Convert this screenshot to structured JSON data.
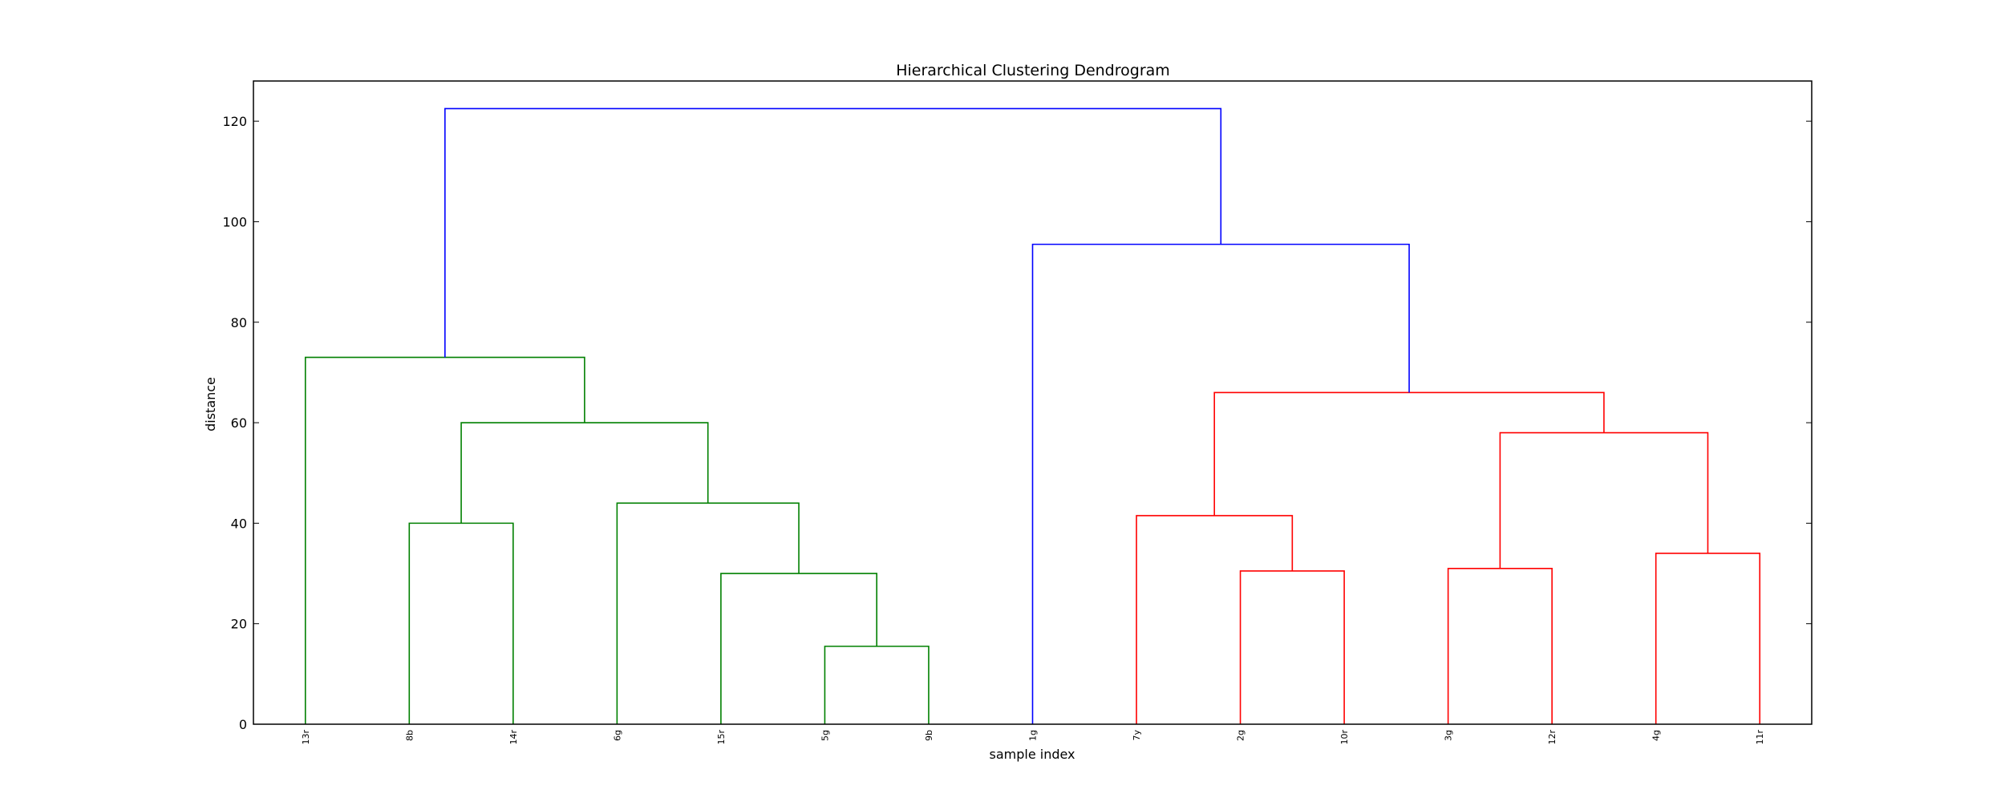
{
  "chart_data": {
    "type": "dendrogram",
    "title": "Hierarchical Clustering Dendrogram",
    "xlabel": "sample index",
    "ylabel": "distance",
    "ylim": [
      0,
      128
    ],
    "yticks": [
      0,
      20,
      40,
      60,
      80,
      100,
      120
    ],
    "grid": false,
    "leaves": [
      "13r",
      "8b",
      "14r",
      "6g",
      "15r",
      "5g",
      "9b",
      "1g",
      "7y",
      "2g",
      "10r",
      "3g",
      "12r",
      "4g",
      "11r"
    ],
    "colors": {
      "cluster_1": "#008000",
      "cluster_2": "#ff0000",
      "above_threshold": "#0000ff"
    },
    "merges": [
      {
        "left": "5g",
        "right": "9b",
        "distance": 15.5,
        "color": "cluster_1"
      },
      {
        "left": "15r",
        "right": "(5g, 9b)",
        "distance": 30.0,
        "color": "cluster_1"
      },
      {
        "left": "8b",
        "right": "14r",
        "distance": 40.0,
        "color": "cluster_1"
      },
      {
        "left": "6g",
        "right": "(15r, 5g, 9b)",
        "distance": 44.0,
        "color": "cluster_1"
      },
      {
        "left": "(8b, 14r)",
        "right": "(6g, 15r, 5g, 9b)",
        "distance": 60.0,
        "color": "cluster_1"
      },
      {
        "left": "13r",
        "right": "(8b, 14r, 6g, 15r, 5g, 9b)",
        "distance": 73.0,
        "color": "cluster_1"
      },
      {
        "left": "2g",
        "right": "10r",
        "distance": 30.5,
        "color": "cluster_2"
      },
      {
        "left": "3g",
        "right": "12r",
        "distance": 31.0,
        "color": "cluster_2"
      },
      {
        "left": "4g",
        "right": "11r",
        "distance": 34.0,
        "color": "cluster_2"
      },
      {
        "left": "7y",
        "right": "(2g, 10r)",
        "distance": 41.5,
        "color": "cluster_2"
      },
      {
        "left": "(3g, 12r)",
        "right": "(4g, 11r)",
        "distance": 58.0,
        "color": "cluster_2"
      },
      {
        "left": "(7y, 2g, 10r)",
        "right": "(3g, 12r, 4g, 11r)",
        "distance": 66.0,
        "color": "cluster_2"
      },
      {
        "left": "1g",
        "right": "(7y, 2g, 10r, 3g, 12r, 4g, 11r)",
        "distance": 95.5,
        "color": "above_threshold"
      },
      {
        "left": "(13r, 8b, 14r, 6g, 15r, 5g, 9b)",
        "right": "(1g, 7y, 2g, 10r, 3g, 12r, 4g, 11r)",
        "distance": 122.5,
        "color": "above_threshold"
      }
    ]
  }
}
